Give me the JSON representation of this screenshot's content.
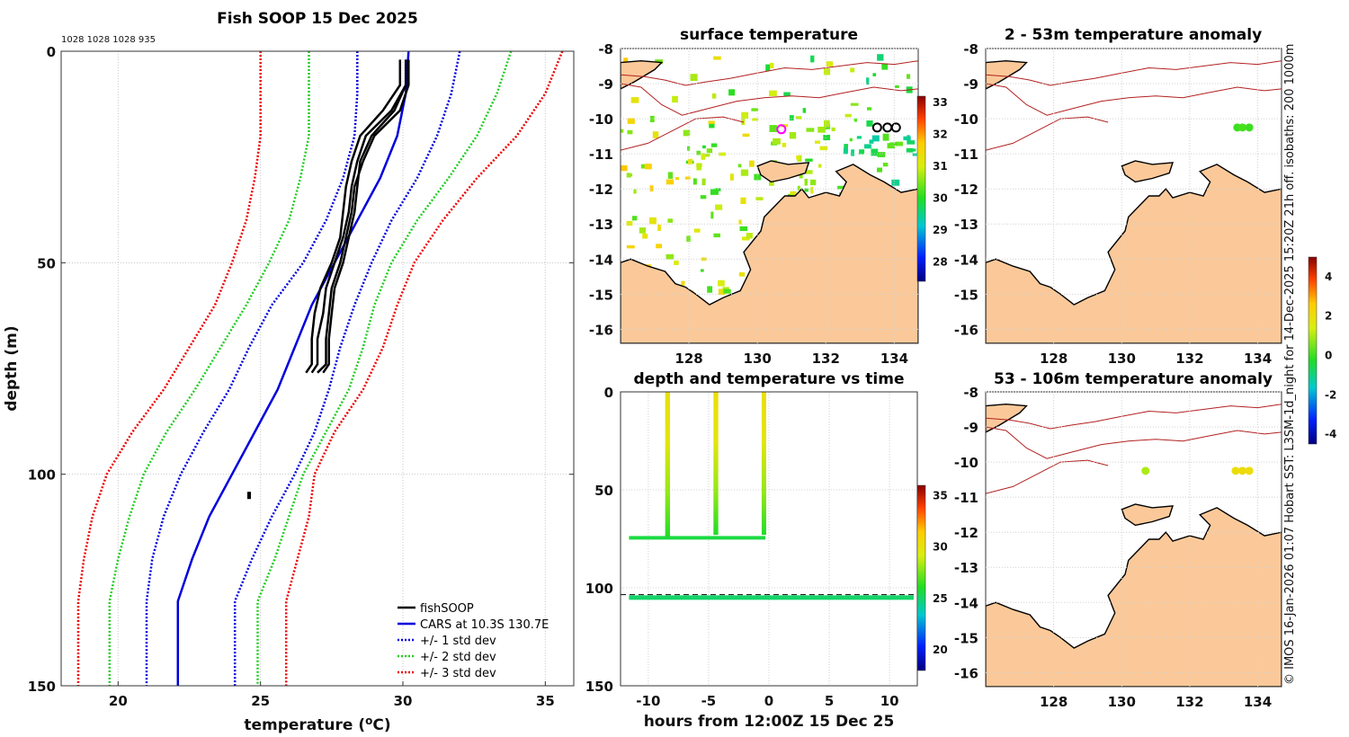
{
  "chart_data": [
    {
      "id": "profile",
      "type": "line",
      "title": "Fish SOOP 15 Dec 2025",
      "subtitle": "1028 1028 1028 935",
      "xlabel": "temperature (oC)",
      "ylabel": "depth (m)",
      "xlim": [
        18,
        36
      ],
      "ylim": [
        150,
        0
      ],
      "xticks": [
        "20",
        "25",
        "30",
        "35"
      ],
      "yticks": [
        "0",
        "50",
        "100",
        "150"
      ],
      "legend": [
        "fishSOOP",
        "CARS at 10.3S 130.7E",
        "+/- 1 std dev",
        "+/- 2 std dev",
        "+/- 3 std dev"
      ],
      "depth": [
        0,
        10,
        20,
        30,
        40,
        50,
        60,
        70,
        80,
        90,
        100,
        110,
        120,
        130,
        140,
        150
      ],
      "series": [
        {
          "name": "CARS at 10.3S 130.7E",
          "color": "#0000dd",
          "temp": [
            30.2,
            30.1,
            29.8,
            29.2,
            28.4,
            27.6,
            26.8,
            26.2,
            25.6,
            24.8,
            24.0,
            23.2,
            22.6,
            22.1,
            22.1,
            22.1
          ]
        },
        {
          "name": "+1 std dev",
          "color": "#0000dd",
          "temp": [
            32.0,
            31.7,
            31.2,
            30.5,
            29.6,
            28.9,
            28.3,
            27.8,
            27.4,
            26.9,
            26.2,
            25.4,
            24.7,
            24.1,
            24.1,
            24.1
          ]
        },
        {
          "name": "-1 std dev",
          "color": "#0000dd",
          "temp": [
            28.4,
            28.4,
            28.3,
            27.9,
            27.3,
            26.5,
            25.4,
            24.6,
            23.9,
            23.0,
            22.2,
            21.6,
            21.2,
            21.0,
            21.0,
            21.0
          ]
        },
        {
          "name": "+2 std dev",
          "color": "#22cc22",
          "temp": [
            33.8,
            33.3,
            32.6,
            31.6,
            30.5,
            29.6,
            29.0,
            28.6,
            28.1,
            27.3,
            26.5,
            26.0,
            25.5,
            24.9,
            24.9,
            24.9
          ]
        },
        {
          "name": "-2 std dev",
          "color": "#22cc22",
          "temp": [
            26.7,
            26.7,
            26.7,
            26.4,
            26.0,
            25.3,
            24.5,
            23.6,
            22.7,
            21.7,
            20.9,
            20.4,
            20.0,
            19.7,
            19.7,
            19.7
          ]
        },
        {
          "name": "+3 std dev",
          "color": "#ee0000",
          "temp": [
            35.6,
            35.0,
            34.0,
            32.6,
            31.4,
            30.4,
            29.8,
            29.3,
            28.6,
            27.6,
            26.9,
            26.7,
            26.3,
            25.9,
            25.9,
            25.9
          ]
        },
        {
          "name": "-3 std dev",
          "color": "#ee0000",
          "temp": [
            25.0,
            25.0,
            25.0,
            24.8,
            24.5,
            24.0,
            23.4,
            22.5,
            21.6,
            20.5,
            19.6,
            19.1,
            18.8,
            18.6,
            18.6,
            18.6
          ]
        }
      ],
      "fishsoop_casts": [
        {
          "depth": [
            2,
            8,
            14,
            20,
            26,
            32,
            38,
            44,
            50,
            56,
            62,
            68,
            74,
            76
          ],
          "temp": [
            30.2,
            30.2,
            29.9,
            29.0,
            28.6,
            28.3,
            28.2,
            28.0,
            27.8,
            27.5,
            27.4,
            27.3,
            27.3,
            27.0
          ]
        },
        {
          "depth": [
            2,
            8,
            14,
            20,
            26,
            32,
            38,
            44,
            50,
            56,
            62,
            68,
            74,
            76
          ],
          "temp": [
            30.1,
            30.1,
            29.6,
            28.7,
            28.4,
            28.2,
            28.1,
            27.9,
            27.6,
            27.3,
            27.2,
            27.0,
            27.0,
            26.8
          ]
        },
        {
          "depth": [
            2,
            8,
            14,
            20,
            26,
            32,
            38,
            44,
            50,
            56,
            62,
            68,
            74,
            76
          ],
          "temp": [
            29.9,
            29.9,
            29.3,
            28.5,
            28.2,
            28.0,
            27.9,
            27.8,
            27.5,
            27.1,
            26.9,
            26.8,
            26.8,
            26.6
          ]
        },
        {
          "depth": [
            2,
            8,
            14,
            20,
            26,
            32,
            38,
            44,
            50,
            56,
            62,
            68,
            74,
            76
          ],
          "temp": [
            30.1,
            30.1,
            29.7,
            28.9,
            28.5,
            28.4,
            28.3,
            28.1,
            27.9,
            27.6,
            27.5,
            27.4,
            27.4,
            27.2
          ]
        }
      ],
      "fishsoop_spot": {
        "depth": 105,
        "temp": 24.6
      }
    },
    {
      "id": "sst_map",
      "type": "heatmap",
      "title": "surface temperature",
      "xticks": [
        "128",
        "130",
        "132",
        "134"
      ],
      "yticks": [
        "-8",
        "-9",
        "-10",
        "-11",
        "-12",
        "-13",
        "-14",
        "-15",
        "-16"
      ],
      "xlim": [
        126,
        134.7
      ],
      "ylim": [
        -16.4,
        -8
      ],
      "colorbar_ticks": [
        "28",
        "29",
        "30",
        "31",
        "32",
        "33"
      ],
      "colorbar_range": [
        27.4,
        33.2
      ],
      "markers": [
        {
          "lon": 130.7,
          "lat": -10.3,
          "color": "#ff00ff"
        },
        {
          "lon": 133.5,
          "lat": -10.25,
          "color": "#000000"
        },
        {
          "lon": 133.8,
          "lat": -10.25,
          "color": "#000000"
        },
        {
          "lon": 134.05,
          "lat": -10.25,
          "color": "#000000"
        }
      ]
    },
    {
      "id": "anom_shallow",
      "type": "heatmap",
      "title": "2 - 53m temperature anomaly",
      "xticks": [
        "128",
        "130",
        "132",
        "134"
      ],
      "yticks": [
        "-8",
        "-9",
        "-10",
        "-11",
        "-12",
        "-13",
        "-14",
        "-15",
        "-16"
      ],
      "xlim": [
        126,
        134.7
      ],
      "ylim": [
        -16.4,
        -8
      ],
      "points": [
        {
          "lon": 133.4,
          "lat": -10.25,
          "anomaly": 0.0
        },
        {
          "lon": 133.55,
          "lat": -10.25,
          "anomaly": 0.1
        },
        {
          "lon": 133.75,
          "lat": -10.25,
          "anomaly": 0.0
        }
      ]
    },
    {
      "id": "anom_deep",
      "type": "heatmap",
      "title": "53 - 106m temperature anomaly",
      "xticks": [
        "128",
        "130",
        "132",
        "134"
      ],
      "yticks": [
        "-8",
        "-9",
        "-10",
        "-11",
        "-12",
        "-13",
        "-14",
        "-15",
        "-16"
      ],
      "xlim": [
        126,
        134.7
      ],
      "ylim": [
        -16.4,
        -8
      ],
      "colorbar_ticks": [
        "-4",
        "-2",
        "0",
        "2",
        "4"
      ],
      "colorbar_range": [
        -4.5,
        5
      ],
      "points": [
        {
          "lon": 130.7,
          "lat": -10.25,
          "anomaly": 1.0
        },
        {
          "lon": 133.35,
          "lat": -10.25,
          "anomaly": 2.0
        },
        {
          "lon": 133.55,
          "lat": -10.25,
          "anomaly": 2.1
        },
        {
          "lon": 133.75,
          "lat": -10.25,
          "anomaly": 2.0
        }
      ]
    },
    {
      "id": "time_series",
      "type": "scatter",
      "title": "depth and temperature vs time",
      "xlabel": "hours from 12:00Z 15 Dec 25",
      "xlim": [
        -12.3,
        12.3
      ],
      "ylim": [
        150,
        0
      ],
      "xticks": [
        "-10",
        "-5",
        "0",
        "5",
        "10"
      ],
      "yticks": [
        "0",
        "50",
        "100",
        "150"
      ],
      "colorbar_ticks": [
        "20",
        "25",
        "30",
        "35"
      ],
      "colorbar_range": [
        18,
        36
      ],
      "bottom_reference_depth": 103.5,
      "profiles": [
        {
          "start": -8.6,
          "end": -8.2,
          "bottom": 74
        },
        {
          "start": -4.6,
          "end": -4.2,
          "bottom": 73
        },
        {
          "start": -0.6,
          "end": -0.3,
          "bottom": 73
        }
      ],
      "shallow_track": {
        "start": -11.6,
        "end": -0.3,
        "depth": 74.5,
        "temp": 25.6
      },
      "deep_track": {
        "start": -11.6,
        "end": 12,
        "depth": 105,
        "temp": 25.0
      }
    }
  ],
  "side_text": "© IMOS 16-Jan-2026 01:07 Hobart SST: L3SM-1d_night for 14-Dec-2025 15:20Z 21h off. isobaths: 200  1000m"
}
